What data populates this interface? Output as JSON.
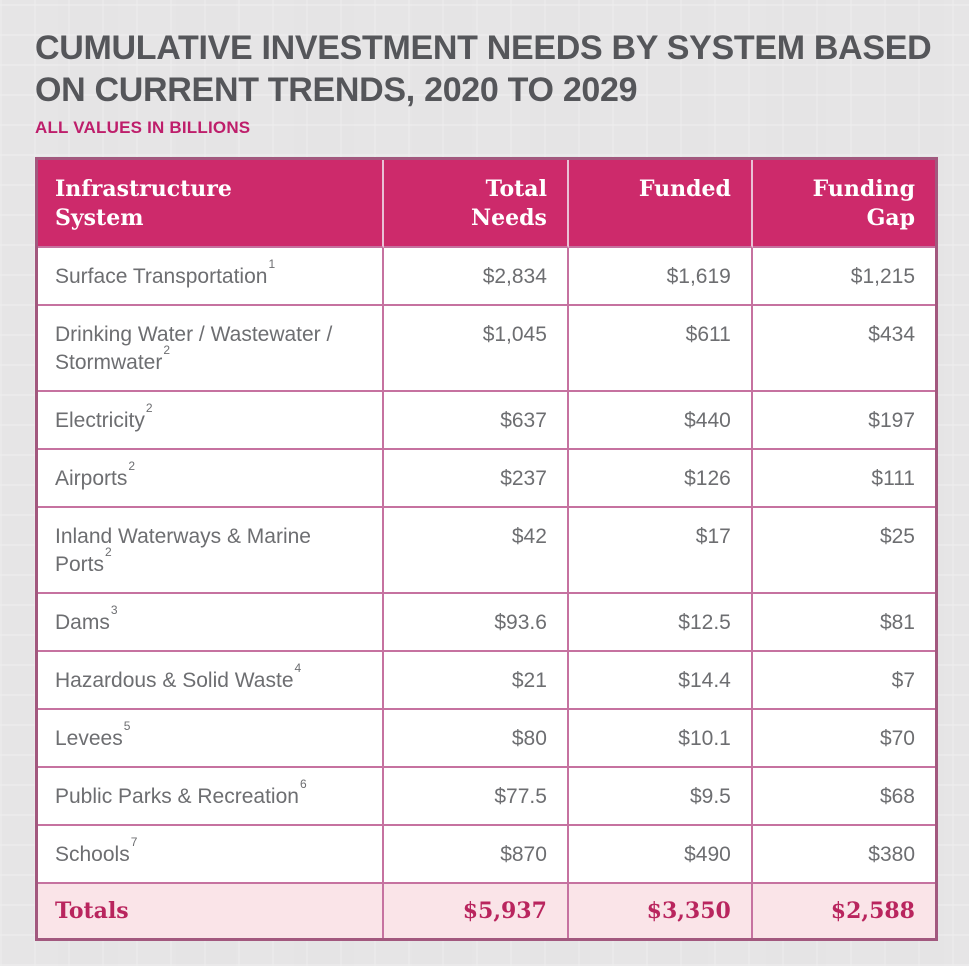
{
  "page": {
    "title": "CUMULATIVE INVESTMENT NEEDS BY SYSTEM BASED\nON CURRENT TRENDS, 2020 TO 2029",
    "subtitle": "ALL VALUES IN BILLIONS"
  },
  "colors": {
    "page_bg": "#e5e4e5",
    "title_text": "#55565a",
    "subtitle_magenta": "#be1e6b",
    "header_bg": "#cd2a6b",
    "header_text": "#ffffff",
    "grid_line_pink": "#c672a0",
    "outer_border": "#a2587e",
    "body_text": "#6d6e71",
    "totals_bg": "#fae4e8",
    "totals_text": "#b9255e"
  },
  "table": {
    "columns": [
      {
        "label": "Infrastructure\nSystem"
      },
      {
        "label": "Total\nNeeds"
      },
      {
        "label": "Funded"
      },
      {
        "label": "Funding\nGap"
      }
    ],
    "rows": [
      {
        "system": "Surface Transportation",
        "footnote": "1",
        "total_needs": "$2,834",
        "funded": "$1,619",
        "funding_gap": "$1,215"
      },
      {
        "system": "Drinking Water / Wastewater /\nStormwater",
        "footnote": "2",
        "total_needs": "$1,045",
        "funded": "$611",
        "funding_gap": "$434"
      },
      {
        "system": "Electricity",
        "footnote": "2",
        "total_needs": "$637",
        "funded": "$440",
        "funding_gap": "$197"
      },
      {
        "system": "Airports",
        "footnote": "2",
        "total_needs": "$237",
        "funded": "$126",
        "funding_gap": "$111"
      },
      {
        "system": "Inland Waterways & Marine\nPorts",
        "footnote": "2",
        "total_needs": "$42",
        "funded": "$17",
        "funding_gap": "$25"
      },
      {
        "system": "Dams",
        "footnote": "3",
        "total_needs": "$93.6",
        "funded": "$12.5",
        "funding_gap": "$81"
      },
      {
        "system": "Hazardous & Solid Waste",
        "footnote": "4",
        "total_needs": "$21",
        "funded": "$14.4",
        "funding_gap": "$7"
      },
      {
        "system": "Levees",
        "footnote": "5",
        "total_needs": "$80",
        "funded": "$10.1",
        "funding_gap": "$70"
      },
      {
        "system": "Public Parks & Recreation",
        "footnote": "6",
        "total_needs": "$77.5",
        "funded": "$9.5",
        "funding_gap": "$68"
      },
      {
        "system": "Schools",
        "footnote": "7",
        "total_needs": "$870",
        "funded": "$490",
        "funding_gap": "$380"
      }
    ],
    "totals": {
      "label": "Totals",
      "total_needs": "$5,937",
      "funded": "$3,350",
      "funding_gap": "$2,588"
    }
  },
  "chart_data": {
    "type": "table",
    "title": "CUMULATIVE INVESTMENT NEEDS BY SYSTEM BASED ON CURRENT TRENDS, 2020 TO 2029",
    "subtitle": "ALL VALUES IN BILLIONS",
    "units": "USD billions",
    "columns": [
      "Infrastructure System",
      "Total Needs",
      "Funded",
      "Funding Gap"
    ],
    "rows": [
      [
        "Surface Transportation",
        2834,
        1619,
        1215
      ],
      [
        "Drinking Water / Wastewater / Stormwater",
        1045,
        611,
        434
      ],
      [
        "Electricity",
        637,
        440,
        197
      ],
      [
        "Airports",
        237,
        126,
        111
      ],
      [
        "Inland Waterways & Marine Ports",
        42,
        17,
        25
      ],
      [
        "Dams",
        93.6,
        12.5,
        81
      ],
      [
        "Hazardous & Solid Waste",
        21,
        14.4,
        7
      ],
      [
        "Levees",
        80,
        10.1,
        70
      ],
      [
        "Public Parks & Recreation",
        77.5,
        9.5,
        68
      ],
      [
        "Schools",
        870,
        490,
        380
      ]
    ],
    "totals": [
      "Totals",
      5937,
      3350,
      2588
    ],
    "footnote_markers": [
      1,
      2,
      2,
      2,
      2,
      3,
      4,
      5,
      6,
      7
    ]
  }
}
